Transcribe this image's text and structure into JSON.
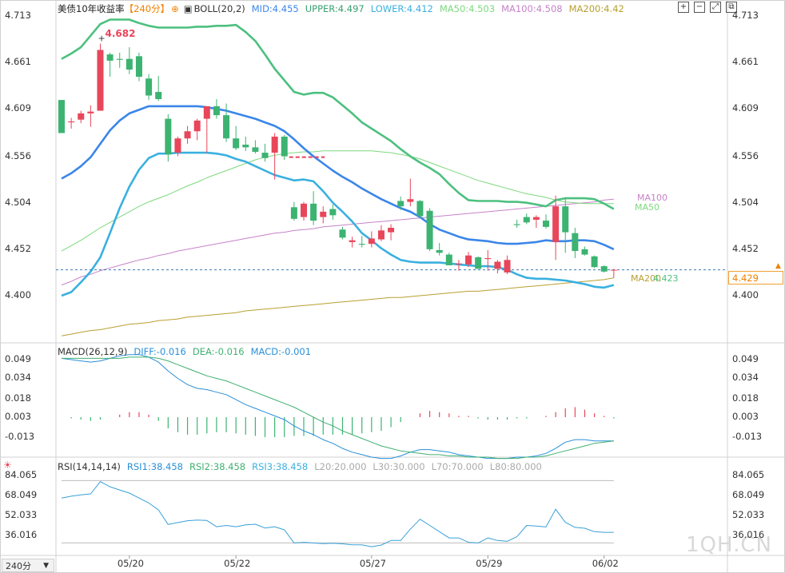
{
  "header": {
    "title": "美债10年收益率",
    "period": "【240分】",
    "boll": "BOLL(20,2)",
    "mid": "MID:4.455",
    "upper": "UPPER:4.497",
    "lower": "LOWER:4.412",
    "ma50": "MA50:4.503",
    "ma100": "MA100:4.508",
    "ma200": "MA200:4.42"
  },
  "macd_header": {
    "title": "MACD(26,12,9)",
    "diff": "DIFF:-0.016",
    "dea": "DEA:-0.016",
    "macd": "MACD:-0.001"
  },
  "rsi_header": {
    "title": "RSI(14,14,14)",
    "rsi1": "RSI1:38.458",
    "rsi2": "RSI2:38.458",
    "rsi3": "RSI3:38.458",
    "l20": "L20:20.000",
    "l30": "L30:30.000",
    "l70": "L70:70.000",
    "l80": "L80:80.000"
  },
  "price_tag": "4.429",
  "period_button": "240分",
  "watermark": "1QH.CN",
  "colors": {
    "up": "#e8465a",
    "down": "#3cb371",
    "mid": "#3a86e8",
    "upper": "#4cc07f",
    "lower": "#3ab0e0",
    "ma50": "#7ed87e",
    "ma100": "#c583c8",
    "ma200": "#b8a030",
    "diff": "#2a8fd8",
    "dea": "#40b070",
    "rsi": "#3aa0d8",
    "title_red": "#e8465a",
    "title_orange": "#f08000"
  },
  "chart_data": {
    "type": "candlestick",
    "symbol": "美债10年收益率",
    "interval": "240分",
    "price_ticks": [
      "4.713",
      "4.661",
      "4.609",
      "4.556",
      "4.504",
      "4.452",
      "4.400"
    ],
    "x_labels": [
      {
        "label": "05/20",
        "index": 7
      },
      {
        "label": "05/22",
        "index": 18
      },
      {
        "label": "05/27",
        "index": 32
      },
      {
        "label": "05/29",
        "index": 44
      },
      {
        "label": "06/02",
        "index": 56
      }
    ],
    "high_annotation": "4.682",
    "last_value": "4.429",
    "candles": [
      [
        4.619,
        4.619,
        4.582,
        4.582
      ],
      [
        4.594,
        4.599,
        4.587,
        4.595
      ],
      [
        4.597,
        4.607,
        4.593,
        4.604
      ],
      [
        4.604,
        4.613,
        4.589,
        4.606
      ],
      [
        4.607,
        4.682,
        4.607,
        4.675
      ],
      [
        4.67,
        4.672,
        4.645,
        4.663
      ],
      [
        4.665,
        4.672,
        4.655,
        4.664
      ],
      [
        4.665,
        4.678,
        4.648,
        4.653
      ],
      [
        4.668,
        4.672,
        4.64,
        4.645
      ],
      [
        4.643,
        4.648,
        4.619,
        4.624
      ],
      [
        4.628,
        4.646,
        4.618,
        4.62
      ],
      [
        4.598,
        4.603,
        4.55,
        4.558
      ],
      [
        4.56,
        4.578,
        4.556,
        4.576
      ],
      [
        4.576,
        4.59,
        4.57,
        4.584
      ],
      [
        4.584,
        4.598,
        4.574,
        4.596
      ],
      [
        4.598,
        4.61,
        4.56,
        4.612
      ],
      [
        4.612,
        4.62,
        4.598,
        4.602
      ],
      [
        4.602,
        4.615,
        4.572,
        4.576
      ],
      [
        4.576,
        4.59,
        4.563,
        4.565
      ],
      [
        4.569,
        4.578,
        4.562,
        4.566
      ],
      [
        4.566,
        4.574,
        4.559,
        4.561
      ],
      [
        4.56,
        4.57,
        4.55,
        4.554
      ],
      [
        4.56,
        4.582,
        4.53,
        4.578
      ],
      [
        4.578,
        4.58,
        4.552,
        4.556
      ],
      [
        4.499,
        4.505,
        4.484,
        4.486
      ],
      [
        4.488,
        4.505,
        4.484,
        4.503
      ],
      [
        4.503,
        4.517,
        4.479,
        4.484
      ],
      [
        4.488,
        4.5,
        4.481,
        4.494
      ],
      [
        4.497,
        4.502,
        4.485,
        4.49
      ],
      [
        4.474,
        4.477,
        4.463,
        4.465
      ],
      [
        4.46,
        4.466,
        4.454,
        4.462
      ],
      [
        4.458,
        4.467,
        4.454,
        4.457
      ],
      [
        4.458,
        4.472,
        4.454,
        4.464
      ],
      [
        4.463,
        4.479,
        4.461,
        4.473
      ],
      [
        4.471,
        4.48,
        4.462,
        4.476
      ],
      [
        4.506,
        4.511,
        4.496,
        4.5
      ],
      [
        4.505,
        4.531,
        4.5,
        4.508
      ],
      [
        4.506,
        4.507,
        4.487,
        4.489
      ],
      [
        4.495,
        4.498,
        4.45,
        4.452
      ],
      [
        4.451,
        4.459,
        4.445,
        4.448
      ],
      [
        4.446,
        4.448,
        4.434,
        4.434
      ],
      [
        4.435,
        4.44,
        4.428,
        4.436
      ],
      [
        4.435,
        4.449,
        4.432,
        4.445
      ],
      [
        4.443,
        4.444,
        4.43,
        4.43
      ],
      [
        4.441,
        4.451,
        4.428,
        4.442
      ],
      [
        4.43,
        4.44,
        4.425,
        4.438
      ],
      [
        4.426,
        4.445,
        4.424,
        4.44
      ],
      [
        4.48,
        4.485,
        4.476,
        4.479
      ],
      [
        4.488,
        4.492,
        4.48,
        4.482
      ],
      [
        4.485,
        4.49,
        4.476,
        4.488
      ],
      [
        4.484,
        4.491,
        4.475,
        4.477
      ],
      [
        4.46,
        4.512,
        4.44,
        4.5
      ],
      [
        4.5,
        4.51,
        4.448,
        4.471
      ],
      [
        4.47,
        4.476,
        4.442,
        4.45
      ],
      [
        4.452,
        4.455,
        4.445,
        4.446
      ],
      [
        4.444,
        4.445,
        4.431,
        4.432
      ],
      [
        4.433,
        4.434,
        4.426,
        4.427
      ],
      [
        4.429,
        4.43,
        4.42,
        4.429
      ]
    ],
    "dashed_segment": {
      "price": 4.555
    },
    "series": [
      {
        "name": "MID",
        "values": [
          4.531,
          4.537,
          4.545,
          4.555,
          4.57,
          4.585,
          4.596,
          4.604,
          4.608,
          4.612,
          4.612,
          4.612,
          4.612,
          4.612,
          4.612,
          4.611,
          4.609,
          4.607,
          4.604,
          4.601,
          4.598,
          4.594,
          4.59,
          4.584,
          4.575,
          4.565,
          4.556,
          4.548,
          4.54,
          4.533,
          4.527,
          4.52,
          4.514,
          4.508,
          4.503,
          4.498,
          4.494,
          4.488,
          4.48,
          4.474,
          4.47,
          4.466,
          4.463,
          4.462,
          4.461,
          4.459,
          4.458,
          4.458,
          4.459,
          4.46,
          4.462,
          4.461,
          4.461,
          4.462,
          4.462,
          4.461,
          4.457,
          4.452
        ]
      },
      {
        "name": "UPPER",
        "values": [
          4.665,
          4.671,
          4.678,
          4.691,
          4.704,
          4.709,
          4.709,
          4.709,
          4.705,
          4.702,
          4.7,
          4.7,
          4.7,
          4.7,
          4.701,
          4.701,
          4.702,
          4.702,
          4.703,
          4.695,
          4.685,
          4.67,
          4.654,
          4.641,
          4.628,
          4.625,
          4.627,
          4.627,
          4.622,
          4.613,
          4.604,
          4.594,
          4.587,
          4.58,
          4.573,
          4.564,
          4.556,
          4.549,
          4.543,
          4.536,
          4.525,
          4.515,
          4.507,
          4.506,
          4.506,
          4.506,
          4.505,
          4.505,
          4.504,
          4.502,
          4.5,
          4.507,
          4.509,
          4.509,
          4.509,
          4.508,
          4.503,
          4.497
        ]
      },
      {
        "name": "LOWER",
        "values": [
          4.4,
          4.404,
          4.415,
          4.427,
          4.443,
          4.47,
          4.498,
          4.522,
          4.541,
          4.554,
          4.559,
          4.559,
          4.56,
          4.56,
          4.56,
          4.56,
          4.559,
          4.557,
          4.553,
          4.55,
          4.545,
          4.54,
          4.535,
          4.532,
          4.529,
          4.53,
          4.528,
          4.517,
          4.504,
          4.494,
          4.483,
          4.47,
          4.462,
          4.453,
          4.446,
          4.44,
          4.438,
          4.437,
          4.437,
          4.437,
          4.436,
          4.435,
          4.434,
          4.433,
          4.433,
          4.432,
          4.429,
          4.424,
          4.42,
          4.419,
          4.419,
          4.418,
          4.417,
          4.415,
          4.413,
          4.41,
          4.409,
          4.412
        ]
      },
      {
        "name": "MA50",
        "values": [
          4.45,
          4.456,
          4.462,
          4.469,
          4.476,
          4.482,
          4.488,
          4.494,
          4.5,
          4.505,
          4.509,
          4.513,
          4.518,
          4.523,
          4.527,
          4.532,
          4.536,
          4.54,
          4.544,
          4.548,
          4.552,
          4.555,
          4.557,
          4.559,
          4.56,
          4.561,
          4.561,
          4.562,
          4.562,
          4.562,
          4.562,
          4.562,
          4.562,
          4.561,
          4.56,
          4.558,
          4.556,
          4.553,
          4.549,
          4.545,
          4.541,
          4.537,
          4.533,
          4.529,
          4.526,
          4.523,
          4.52,
          4.517,
          4.514,
          4.512,
          4.51,
          4.507,
          4.505,
          4.504,
          4.503,
          4.503,
          4.503,
          4.503
        ]
      },
      {
        "name": "MA100",
        "values": [
          4.412,
          4.416,
          4.421,
          4.424,
          4.428,
          4.431,
          4.434,
          4.437,
          4.44,
          4.442,
          4.445,
          4.447,
          4.45,
          4.452,
          4.454,
          4.456,
          4.458,
          4.46,
          4.462,
          4.464,
          4.466,
          4.468,
          4.47,
          4.471,
          4.473,
          4.474,
          4.475,
          4.477,
          4.478,
          4.479,
          4.48,
          4.481,
          4.482,
          4.483,
          4.484,
          4.485,
          4.486,
          4.487,
          4.488,
          4.489,
          4.49,
          4.491,
          4.492,
          4.493,
          4.494,
          4.495,
          4.496,
          4.497,
          4.498,
          4.499,
          4.5,
          4.501,
          4.502,
          4.503,
          4.504,
          4.505,
          4.507,
          4.508
        ]
      },
      {
        "name": "MA200",
        "values": [
          4.355,
          4.357,
          4.359,
          4.361,
          4.362,
          4.364,
          4.366,
          4.368,
          4.369,
          4.37,
          4.372,
          4.373,
          4.374,
          4.376,
          4.377,
          4.378,
          4.379,
          4.38,
          4.381,
          4.383,
          4.384,
          4.385,
          4.386,
          4.387,
          4.388,
          4.389,
          4.39,
          4.391,
          4.392,
          4.393,
          4.394,
          4.395,
          4.396,
          4.397,
          4.398,
          4.398,
          4.399,
          4.4,
          4.401,
          4.402,
          4.403,
          4.404,
          4.405,
          4.405,
          4.406,
          4.407,
          4.408,
          4.409,
          4.41,
          4.411,
          4.412,
          4.413,
          4.414,
          4.415,
          4.416,
          4.417,
          4.418,
          4.42
        ]
      }
    ],
    "macd": {
      "ticks": [
        "0.049",
        "0.034",
        "0.018",
        "0.003",
        "-0.013"
      ],
      "diff": [
        0.05,
        0.049,
        0.048,
        0.047,
        0.048,
        0.05,
        0.052,
        0.053,
        0.053,
        0.051,
        0.047,
        0.04,
        0.034,
        0.029,
        0.026,
        0.025,
        0.023,
        0.021,
        0.017,
        0.013,
        0.01,
        0.007,
        0.004,
        0.001,
        -0.004,
        -0.008,
        -0.011,
        -0.015,
        -0.018,
        -0.022,
        -0.025,
        -0.027,
        -0.029,
        -0.03,
        -0.03,
        -0.028,
        -0.025,
        -0.023,
        -0.023,
        -0.024,
        -0.025,
        -0.027,
        -0.028,
        -0.029,
        -0.03,
        -0.03,
        -0.03,
        -0.029,
        -0.029,
        -0.028,
        -0.026,
        -0.022,
        -0.017,
        -0.015,
        -0.015,
        -0.016,
        -0.016,
        -0.016
      ],
      "dea": [
        0.05,
        0.05,
        0.05,
        0.05,
        0.05,
        0.05,
        0.05,
        0.051,
        0.051,
        0.051,
        0.05,
        0.048,
        0.045,
        0.042,
        0.039,
        0.036,
        0.034,
        0.032,
        0.029,
        0.026,
        0.023,
        0.02,
        0.017,
        0.014,
        0.011,
        0.007,
        0.003,
        -0.001,
        -0.004,
        -0.008,
        -0.011,
        -0.014,
        -0.017,
        -0.02,
        -0.022,
        -0.024,
        -0.025,
        -0.026,
        -0.027,
        -0.027,
        -0.028,
        -0.028,
        -0.029,
        -0.029,
        -0.029,
        -0.03,
        -0.03,
        -0.03,
        -0.029,
        -0.029,
        -0.028,
        -0.026,
        -0.024,
        -0.022,
        -0.02,
        -0.018,
        -0.017,
        -0.016
      ],
      "hist": [
        0.0,
        -0.001,
        -0.002,
        -0.003,
        -0.002,
        0.0,
        0.002,
        0.004,
        0.004,
        0.002,
        -0.003,
        -0.009,
        -0.012,
        -0.014,
        -0.014,
        -0.013,
        -0.012,
        -0.012,
        -0.013,
        -0.014,
        -0.015,
        -0.016,
        -0.016,
        -0.016,
        -0.015,
        -0.015,
        -0.015,
        -0.014,
        -0.014,
        -0.014,
        -0.014,
        -0.013,
        -0.012,
        -0.011,
        -0.008,
        -0.004,
        0.0,
        0.003,
        0.005,
        0.004,
        0.003,
        0.001,
        0.001,
        -0.001,
        -0.002,
        -0.002,
        -0.002,
        -0.001,
        -0.001,
        0.0,
        0.001,
        0.004,
        0.007,
        0.008,
        0.006,
        0.003,
        0.001,
        -0.001
      ]
    },
    "rsi": {
      "ticks": [
        "84.065",
        "68.049",
        "52.033",
        "36.016"
      ],
      "levels": [
        20,
        30,
        70,
        80
      ],
      "values": [
        66.0,
        67.5,
        68.5,
        69.3,
        79.2,
        75.0,
        72.5,
        70.0,
        66.0,
        62.0,
        56.5,
        44.8,
        46.3,
        47.8,
        48.4,
        48.0,
        43.0,
        44.0,
        43.0,
        44.5,
        45.0,
        42.0,
        43.0,
        40.5,
        30.0,
        30.5,
        30.0,
        29.5,
        29.8,
        29.3,
        28.5,
        28.5,
        27.0,
        28.3,
        32.0,
        32.0,
        41.0,
        49.0,
        44.0,
        39.0,
        34.0,
        34.0,
        30.5,
        30.0,
        34.0,
        32.0,
        31.3,
        35.0,
        44.0,
        43.5,
        42.8,
        57.0,
        46.5,
        42.5,
        41.8,
        39.0,
        38.5,
        38.5
      ]
    }
  }
}
